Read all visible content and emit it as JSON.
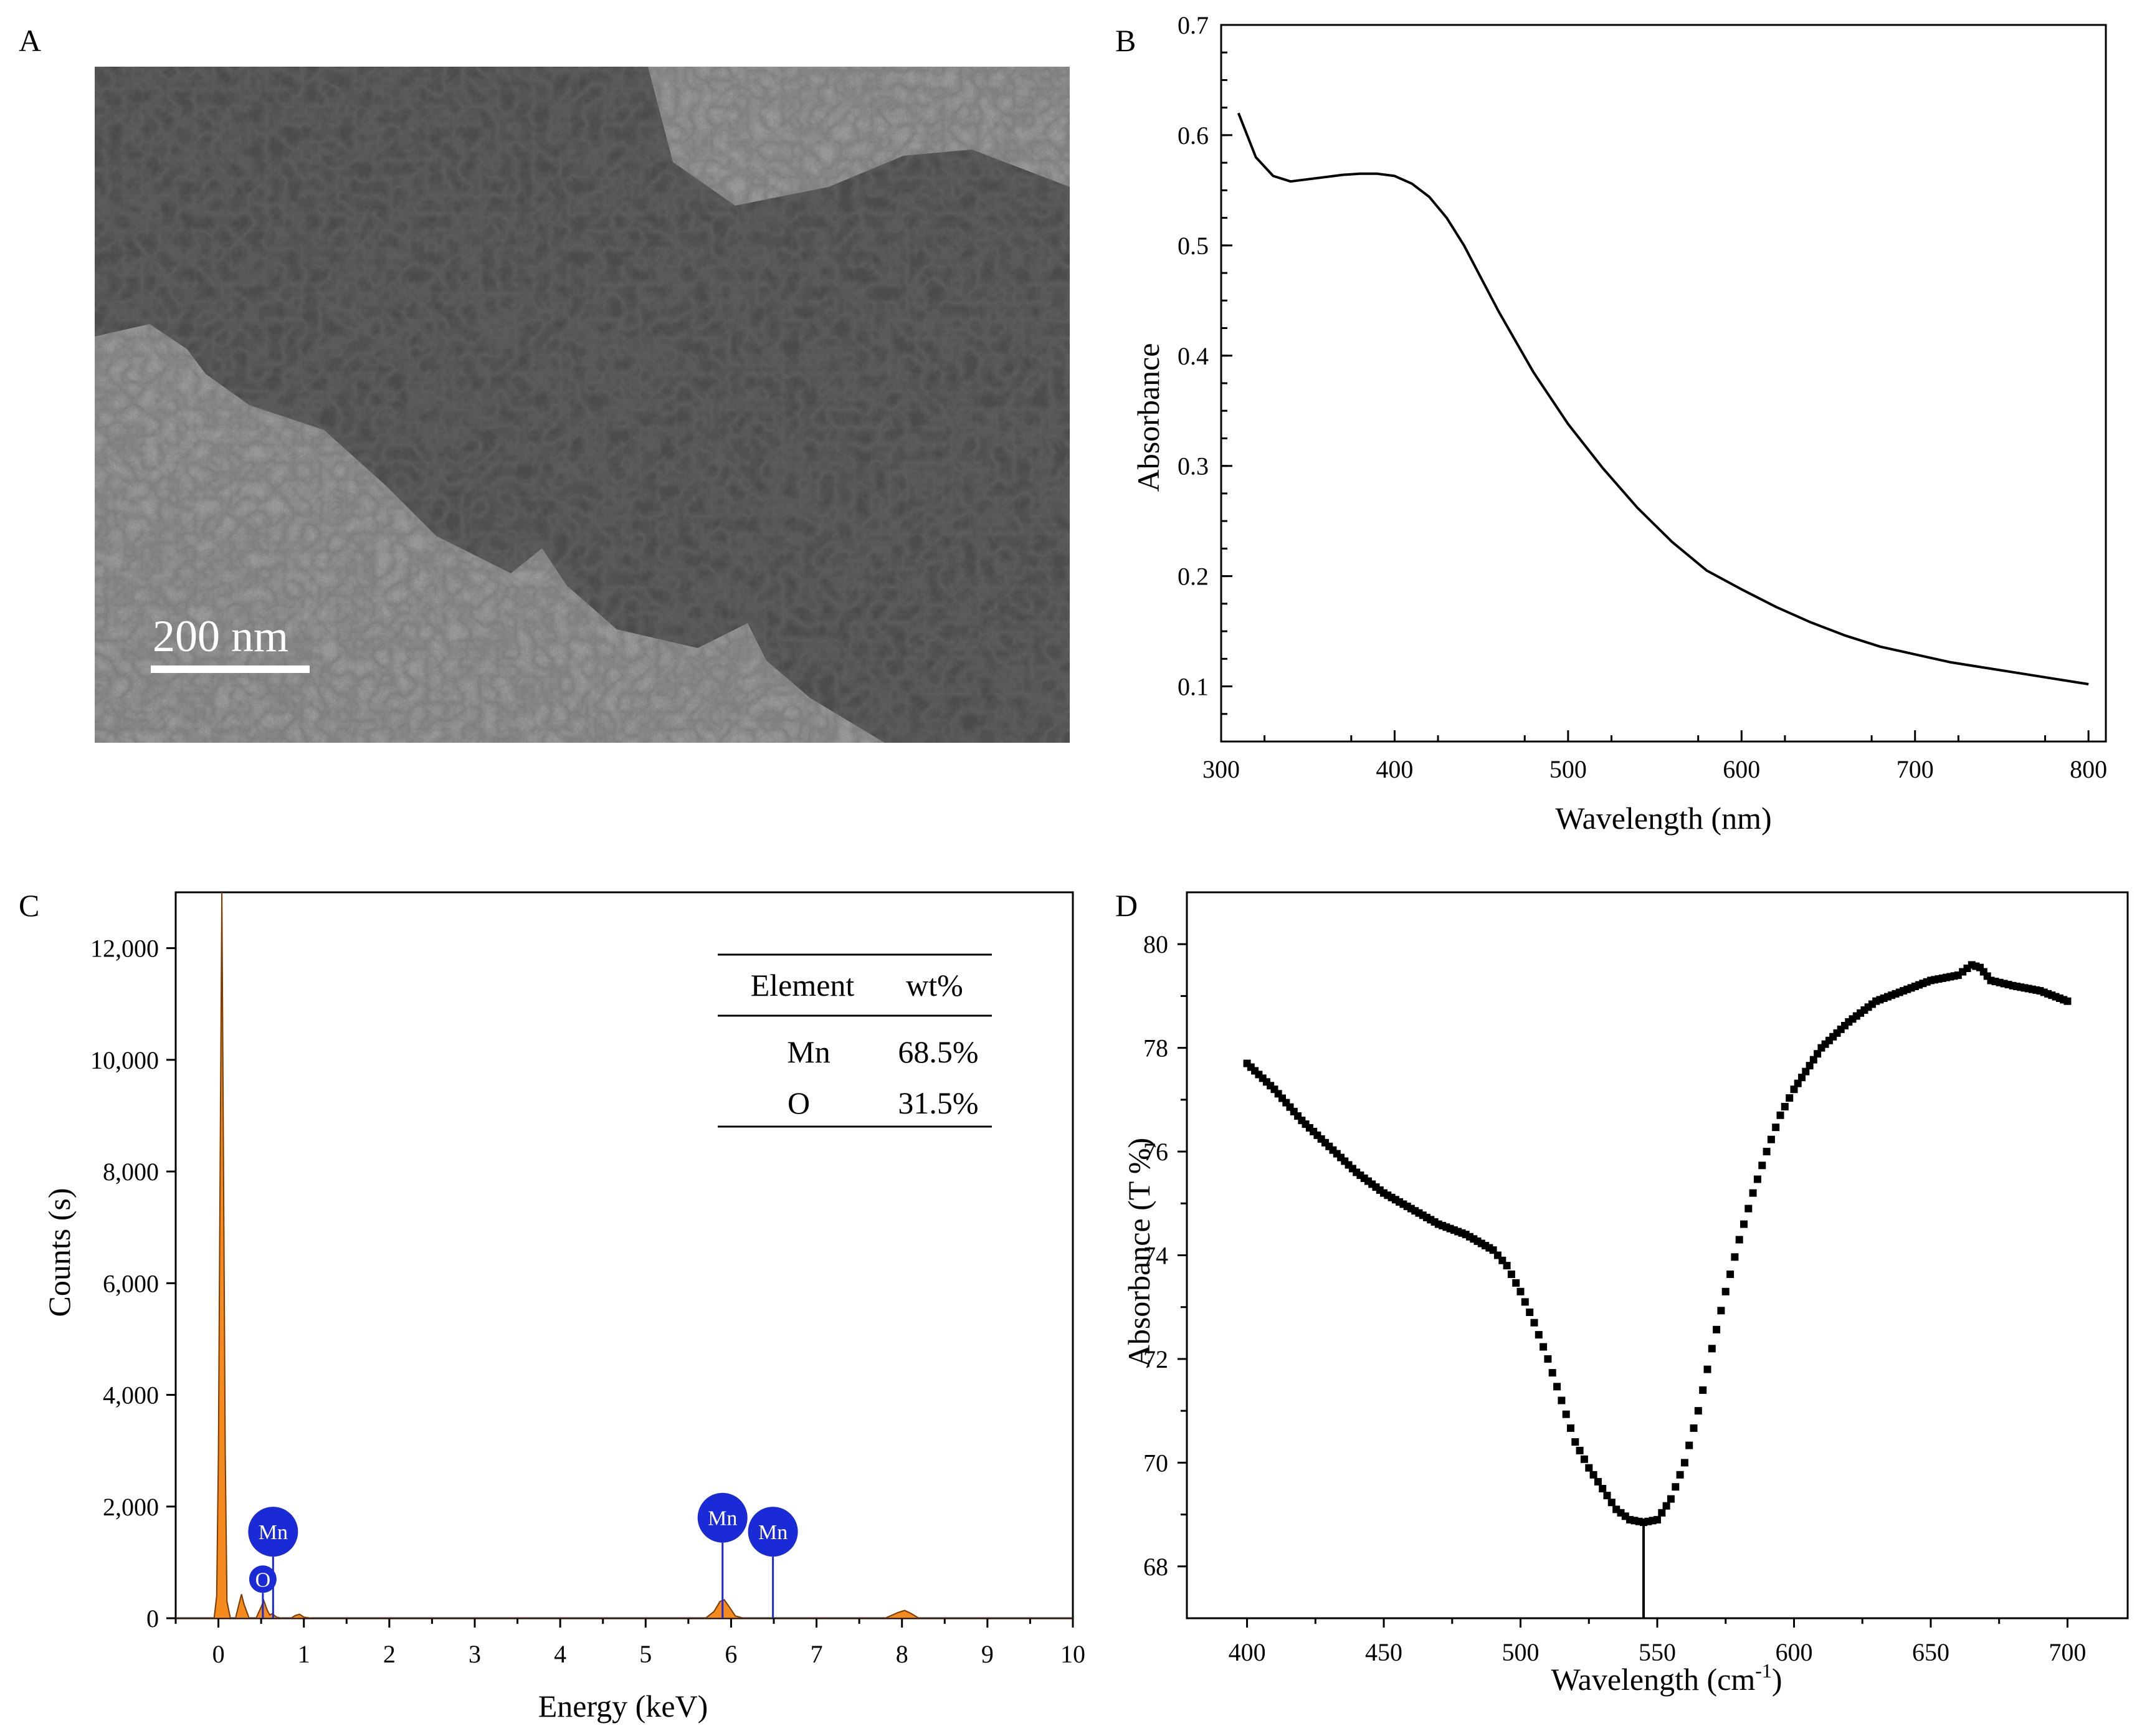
{
  "panels": {
    "a": {
      "letter": "A",
      "scale_bar": "200 nm"
    },
    "b": {
      "letter": "B"
    },
    "c": {
      "letter": "C"
    },
    "d": {
      "letter": "D"
    }
  },
  "colors": {
    "axis": "#000000",
    "line": "#000000",
    "eds_fill": "#f58a1f",
    "eds_outline": "#7a3a00",
    "badge": "#1a2ad6",
    "tem_bg": "#8c8c8c",
    "tem_particle": "#3c3c3c"
  },
  "chart_data": [
    {
      "panel": "B",
      "type": "line",
      "xlabel": "Wavelength (nm)",
      "ylabel": "Absorbance",
      "xlim": [
        300,
        810
      ],
      "ylim": [
        0.05,
        0.7
      ],
      "xticks": [
        300,
        400,
        500,
        600,
        700,
        800
      ],
      "yticks": [
        0.1,
        0.2,
        0.3,
        0.4,
        0.5,
        0.6,
        0.7
      ],
      "ytick_labels": [
        "0.1",
        "0.2",
        "0.3",
        "0.4",
        "0.5",
        "0.6",
        "0.7"
      ],
      "series": [
        {
          "name": "absorbance",
          "x": [
            310,
            320,
            330,
            340,
            350,
            360,
            370,
            380,
            390,
            400,
            410,
            420,
            430,
            440,
            450,
            460,
            480,
            500,
            520,
            540,
            560,
            580,
            600,
            620,
            640,
            660,
            680,
            700,
            720,
            740,
            760,
            780,
            800
          ],
          "y": [
            0.62,
            0.58,
            0.563,
            0.558,
            0.56,
            0.562,
            0.564,
            0.565,
            0.565,
            0.563,
            0.556,
            0.544,
            0.525,
            0.5,
            0.47,
            0.44,
            0.385,
            0.338,
            0.298,
            0.262,
            0.231,
            0.205,
            0.188,
            0.172,
            0.158,
            0.146,
            0.136,
            0.129,
            0.122,
            0.117,
            0.112,
            0.107,
            0.102
          ]
        }
      ]
    },
    {
      "panel": "C",
      "type": "area",
      "xlabel": "Energy (keV)",
      "ylabel": "Counts (s)",
      "xlim": [
        -0.5,
        10
      ],
      "ylim": [
        0,
        13000
      ],
      "xticks": [
        0,
        1,
        2,
        3,
        4,
        5,
        6,
        7,
        8,
        9,
        10
      ],
      "yticks": [
        0,
        2000,
        4000,
        6000,
        8000,
        10000,
        12000
      ],
      "ytick_labels": [
        "0",
        "2,000",
        "4,000",
        "6,000",
        "8,000",
        "10,000",
        "12,000"
      ],
      "series": [
        {
          "name": "spectrum",
          "x": [
            -0.5,
            -0.05,
            -0.02,
            0.0,
            0.02,
            0.04,
            0.06,
            0.08,
            0.1,
            0.14,
            0.2,
            0.24,
            0.27,
            0.3,
            0.36,
            0.44,
            0.5,
            0.53,
            0.57,
            0.6,
            0.63,
            0.68,
            0.75,
            0.85,
            0.9,
            0.95,
            1.0,
            1.1,
            5.7,
            5.8,
            5.87,
            5.92,
            5.98,
            6.05,
            6.15,
            7.8,
            7.95,
            8.03,
            8.1,
            8.2,
            10.0
          ],
          "y": [
            0,
            0,
            400,
            3000,
            8000,
            13000,
            8000,
            3000,
            300,
            0,
            0,
            250,
            430,
            250,
            0,
            0,
            200,
            320,
            150,
            60,
            80,
            20,
            0,
            0,
            50,
            70,
            20,
            0,
            0,
            120,
            300,
            330,
            200,
            40,
            0,
            0,
            100,
            140,
            90,
            0,
            0
          ]
        }
      ],
      "markers": [
        {
          "label": "O",
          "energy": 0.52,
          "badge_counts": 700
        },
        {
          "label": "Mn",
          "energy": 0.64,
          "badge_counts": 1550
        },
        {
          "label": "Mn",
          "energy": 5.9,
          "badge_counts": 1800
        },
        {
          "label": "Mn",
          "energy": 6.49,
          "badge_counts": 1550
        }
      ],
      "table": {
        "headers": [
          "Element",
          "wt%"
        ],
        "rows": [
          [
            "Mn",
            "68.5%"
          ],
          [
            "O",
            "31.5%"
          ]
        ]
      }
    },
    {
      "panel": "D",
      "type": "scatter",
      "xlabel_main": "Wavelength (cm",
      "xlabel_sup": "-1",
      "xlabel_end": ")",
      "ylabel": "Absorbance (T %)",
      "xlim": [
        378,
        722
      ],
      "ylim": [
        67,
        81
      ],
      "xticks": [
        400,
        450,
        500,
        550,
        600,
        650,
        700
      ],
      "yticks": [
        68,
        70,
        72,
        74,
        76,
        78,
        80
      ],
      "marker_line_x": 545,
      "series": [
        {
          "name": "transmittance",
          "x": [
            400,
            410,
            420,
            430,
            440,
            450,
            460,
            470,
            480,
            490,
            495,
            500,
            505,
            510,
            515,
            520,
            525,
            530,
            535,
            540,
            545,
            550,
            555,
            560,
            565,
            570,
            575,
            580,
            585,
            590,
            595,
            600,
            610,
            620,
            630,
            640,
            650,
            660,
            665,
            668,
            672,
            680,
            690,
            700
          ],
          "y": [
            77.7,
            77.2,
            76.6,
            76.1,
            75.6,
            75.2,
            74.9,
            74.6,
            74.4,
            74.1,
            73.8,
            73.3,
            72.7,
            72.0,
            71.2,
            70.4,
            69.9,
            69.5,
            69.1,
            68.9,
            68.85,
            68.9,
            69.3,
            70.0,
            71.0,
            72.2,
            73.3,
            74.3,
            75.2,
            76.0,
            76.7,
            77.2,
            78.0,
            78.5,
            78.9,
            79.1,
            79.3,
            79.4,
            79.6,
            79.55,
            79.3,
            79.2,
            79.1,
            78.9
          ]
        }
      ]
    }
  ]
}
